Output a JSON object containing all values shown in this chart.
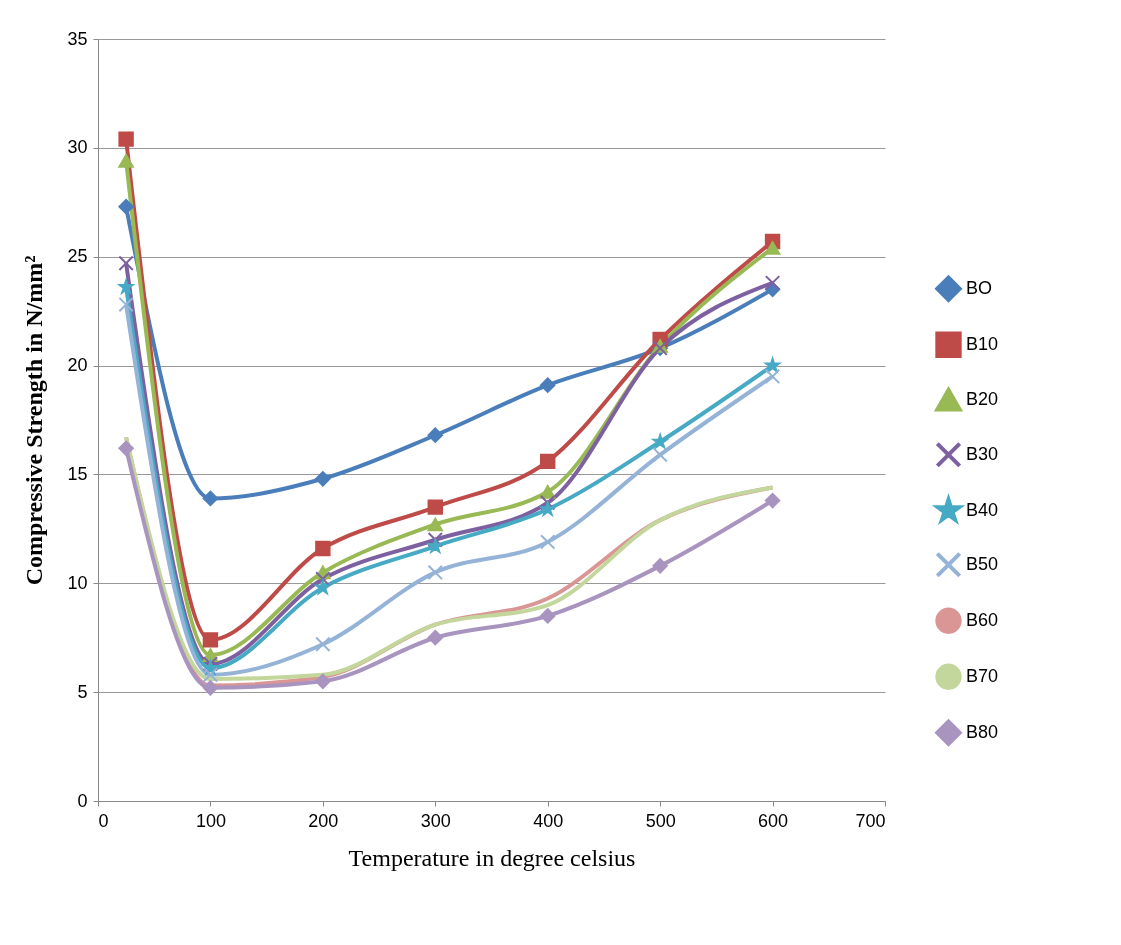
{
  "chart_data": {
    "type": "line",
    "xlabel": "Temperature in degree celsius",
    "ylabel": "Compressive Strength in N/mm²",
    "x": [
      25,
      100,
      200,
      300,
      400,
      500,
      600
    ],
    "xlim": [
      0,
      700
    ],
    "xticks": [
      0,
      100,
      200,
      300,
      400,
      500,
      600,
      700
    ],
    "ylim": [
      0,
      35
    ],
    "yticks": [
      0,
      5,
      10,
      15,
      20,
      25,
      30,
      35
    ],
    "grid": "y",
    "legend": "right",
    "series": [
      {
        "name": "BO",
        "color": "#4a7ebb",
        "marker": "diamond",
        "values": [
          27.3,
          13.9,
          14.8,
          16.8,
          19.1,
          20.8,
          23.5
        ]
      },
      {
        "name": "B10",
        "color": "#be4b48",
        "marker": "square",
        "values": [
          30.4,
          7.4,
          11.6,
          13.5,
          15.6,
          21.2,
          25.7
        ]
      },
      {
        "name": "B20",
        "color": "#98b954",
        "marker": "triangle",
        "values": [
          29.4,
          6.7,
          10.5,
          12.7,
          14.2,
          20.9,
          25.4
        ]
      },
      {
        "name": "B30",
        "color": "#7d60a0",
        "marker": "cross",
        "values": [
          24.7,
          6.3,
          10.2,
          12.0,
          13.7,
          20.8,
          23.8
        ]
      },
      {
        "name": "B40",
        "color": "#46aac5",
        "marker": "star",
        "values": [
          23.6,
          6.1,
          9.8,
          11.7,
          13.4,
          16.5,
          20.0
        ]
      },
      {
        "name": "B50",
        "color": "#94b3d7",
        "marker": "cross",
        "values": [
          22.8,
          5.8,
          7.2,
          10.5,
          11.9,
          15.9,
          19.5
        ]
      },
      {
        "name": "B60",
        "color": "#da9694",
        "marker": "none",
        "values": [
          16.7,
          5.3,
          5.7,
          8.1,
          9.3,
          12.9,
          14.4
        ]
      },
      {
        "name": "B70",
        "color": "#c3d69b",
        "marker": "none",
        "values": [
          16.7,
          5.6,
          5.8,
          8.1,
          9.0,
          12.9,
          14.4
        ]
      },
      {
        "name": "B80",
        "color": "#a994c0",
        "marker": "diamond",
        "values": [
          16.2,
          5.2,
          5.5,
          7.5,
          8.5,
          10.8,
          13.8
        ]
      }
    ]
  }
}
